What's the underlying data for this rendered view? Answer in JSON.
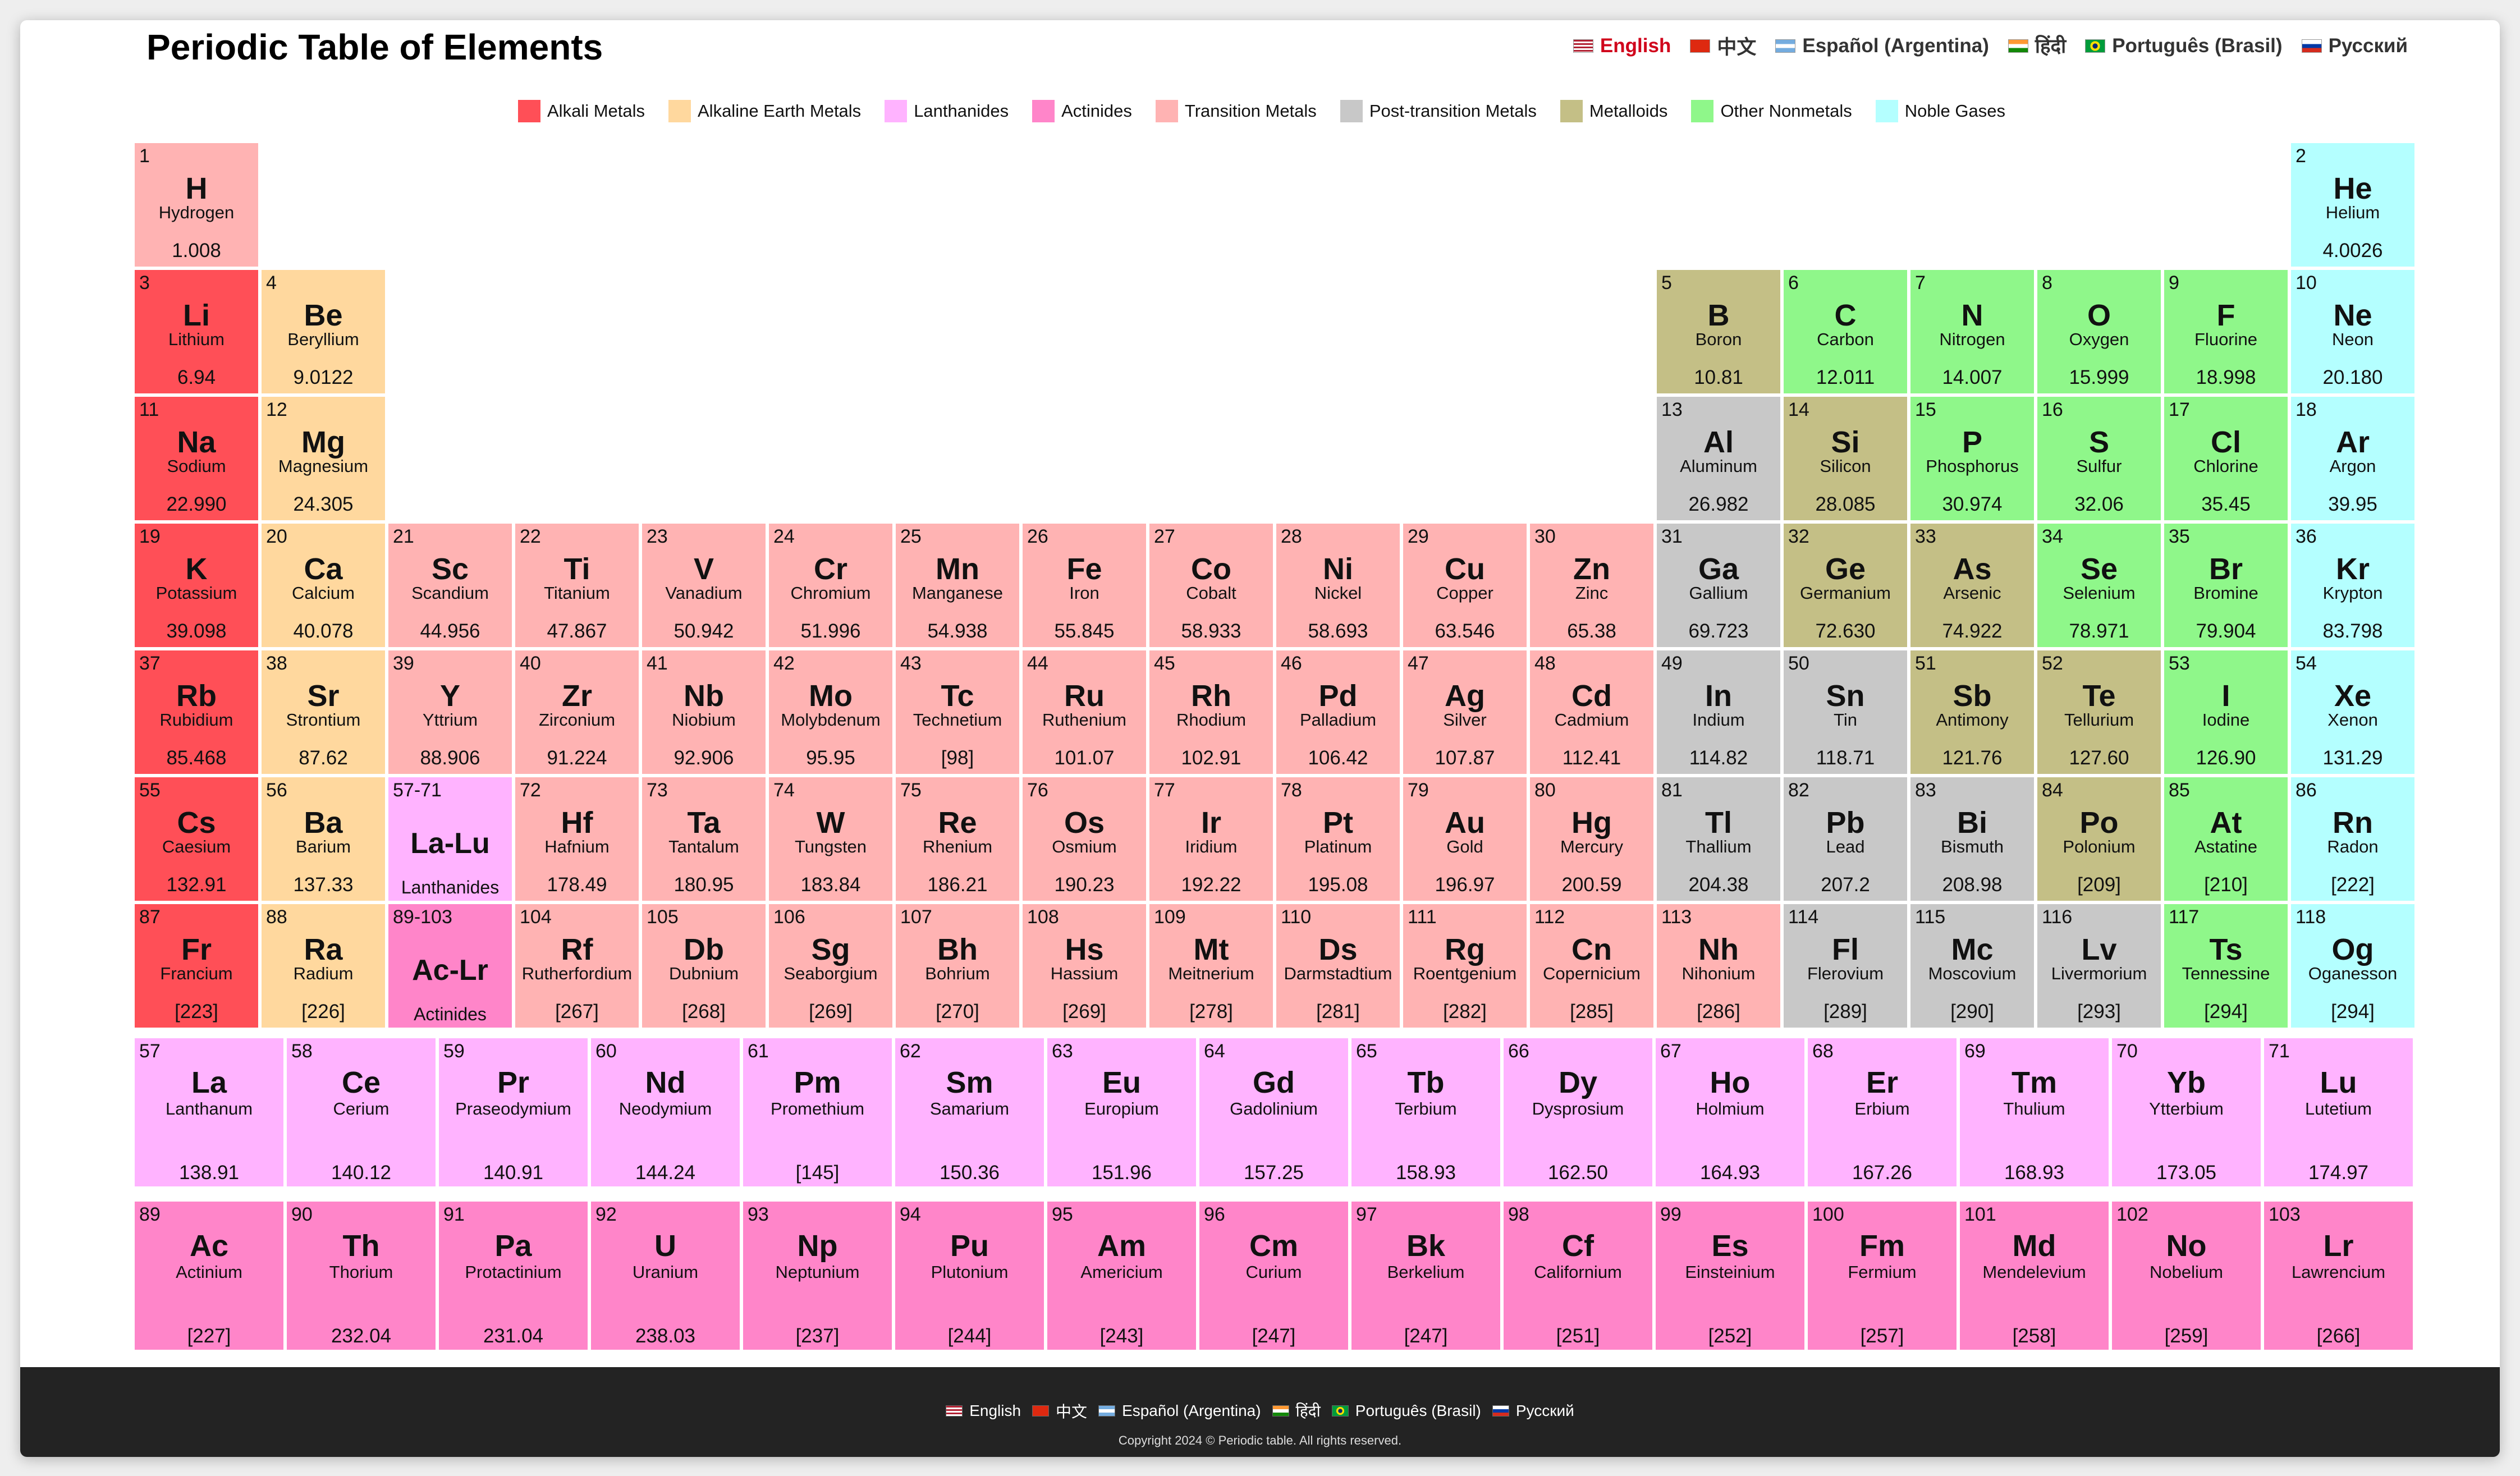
{
  "title": "Periodic Table of Elements",
  "languages": [
    {
      "label": "English",
      "flag": "us",
      "active": true
    },
    {
      "label": "中文",
      "flag": "cn",
      "active": false
    },
    {
      "label": "Español (Argentina)",
      "flag": "ar",
      "active": false
    },
    {
      "label": "हिंदी",
      "flag": "in",
      "active": false
    },
    {
      "label": "Português (Brasil)",
      "flag": "br",
      "active": false
    },
    {
      "label": "Русский",
      "flag": "ru",
      "active": false
    }
  ],
  "legend": [
    {
      "label": "Alkali Metals",
      "color": "#ff4f57"
    },
    {
      "label": "Alkaline Earth Metals",
      "color": "#ffd89e"
    },
    {
      "label": "Lanthanides",
      "color": "#ffb3ff"
    },
    {
      "label": "Actinides",
      "color": "#ff85c9"
    },
    {
      "label": "Transition Metals",
      "color": "#ffb3b3"
    },
    {
      "label": "Post-transition Metals",
      "color": "#c8c8c8"
    },
    {
      "label": "Metalloids",
      "color": "#c4bf86"
    },
    {
      "label": "Other Nonmetals",
      "color": "#8ff78a"
    },
    {
      "label": "Noble Gases",
      "color": "#b4ffff"
    }
  ],
  "category_colors": {
    "am": "#ff4f57",
    "ae": "#ffd89e",
    "ln": "#ffb3ff",
    "ac": "#ff85c9",
    "tm": "#ffb3b3",
    "pt": "#c8c8c8",
    "md": "#c4bf86",
    "nm": "#8ff78a",
    "ng": "#b4ffff"
  },
  "elements": [
    {
      "n": "1",
      "s": "H",
      "name": "Hydrogen",
      "m": "1.008",
      "c": "tm",
      "row": 1,
      "col": 1
    },
    {
      "n": "2",
      "s": "He",
      "name": "Helium",
      "m": "4.0026",
      "c": "ng",
      "row": 1,
      "col": 18
    },
    {
      "n": "3",
      "s": "Li",
      "name": "Lithium",
      "m": "6.94",
      "c": "am",
      "row": 2,
      "col": 1
    },
    {
      "n": "4",
      "s": "Be",
      "name": "Beryllium",
      "m": "9.0122",
      "c": "ae",
      "row": 2,
      "col": 2
    },
    {
      "n": "5",
      "s": "B",
      "name": "Boron",
      "m": "10.81",
      "c": "md",
      "row": 2,
      "col": 13
    },
    {
      "n": "6",
      "s": "C",
      "name": "Carbon",
      "m": "12.011",
      "c": "nm",
      "row": 2,
      "col": 14
    },
    {
      "n": "7",
      "s": "N",
      "name": "Nitrogen",
      "m": "14.007",
      "c": "nm",
      "row": 2,
      "col": 15
    },
    {
      "n": "8",
      "s": "O",
      "name": "Oxygen",
      "m": "15.999",
      "c": "nm",
      "row": 2,
      "col": 16
    },
    {
      "n": "9",
      "s": "F",
      "name": "Fluorine",
      "m": "18.998",
      "c": "nm",
      "row": 2,
      "col": 17
    },
    {
      "n": "10",
      "s": "Ne",
      "name": "Neon",
      "m": "20.180",
      "c": "ng",
      "row": 2,
      "col": 18
    },
    {
      "n": "11",
      "s": "Na",
      "name": "Sodium",
      "m": "22.990",
      "c": "am",
      "row": 3,
      "col": 1
    },
    {
      "n": "12",
      "s": "Mg",
      "name": "Magnesium",
      "m": "24.305",
      "c": "ae",
      "row": 3,
      "col": 2
    },
    {
      "n": "13",
      "s": "Al",
      "name": "Aluminum",
      "m": "26.982",
      "c": "pt",
      "row": 3,
      "col": 13
    },
    {
      "n": "14",
      "s": "Si",
      "name": "Silicon",
      "m": "28.085",
      "c": "md",
      "row": 3,
      "col": 14
    },
    {
      "n": "15",
      "s": "P",
      "name": "Phosphorus",
      "m": "30.974",
      "c": "nm",
      "row": 3,
      "col": 15
    },
    {
      "n": "16",
      "s": "S",
      "name": "Sulfur",
      "m": "32.06",
      "c": "nm",
      "row": 3,
      "col": 16
    },
    {
      "n": "17",
      "s": "Cl",
      "name": "Chlorine",
      "m": "35.45",
      "c": "nm",
      "row": 3,
      "col": 17
    },
    {
      "n": "18",
      "s": "Ar",
      "name": "Argon",
      "m": "39.95",
      "c": "ng",
      "row": 3,
      "col": 18
    },
    {
      "n": "19",
      "s": "K",
      "name": "Potassium",
      "m": "39.098",
      "c": "am",
      "row": 4,
      "col": 1
    },
    {
      "n": "20",
      "s": "Ca",
      "name": "Calcium",
      "m": "40.078",
      "c": "ae",
      "row": 4,
      "col": 2
    },
    {
      "n": "21",
      "s": "Sc",
      "name": "Scandium",
      "m": "44.956",
      "c": "tm",
      "row": 4,
      "col": 3
    },
    {
      "n": "22",
      "s": "Ti",
      "name": "Titanium",
      "m": "47.867",
      "c": "tm",
      "row": 4,
      "col": 4
    },
    {
      "n": "23",
      "s": "V",
      "name": "Vanadium",
      "m": "50.942",
      "c": "tm",
      "row": 4,
      "col": 5
    },
    {
      "n": "24",
      "s": "Cr",
      "name": "Chromium",
      "m": "51.996",
      "c": "tm",
      "row": 4,
      "col": 6
    },
    {
      "n": "25",
      "s": "Mn",
      "name": "Manganese",
      "m": "54.938",
      "c": "tm",
      "row": 4,
      "col": 7
    },
    {
      "n": "26",
      "s": "Fe",
      "name": "Iron",
      "m": "55.845",
      "c": "tm",
      "row": 4,
      "col": 8
    },
    {
      "n": "27",
      "s": "Co",
      "name": "Cobalt",
      "m": "58.933",
      "c": "tm",
      "row": 4,
      "col": 9
    },
    {
      "n": "28",
      "s": "Ni",
      "name": "Nickel",
      "m": "58.693",
      "c": "tm",
      "row": 4,
      "col": 10
    },
    {
      "n": "29",
      "s": "Cu",
      "name": "Copper",
      "m": "63.546",
      "c": "tm",
      "row": 4,
      "col": 11
    },
    {
      "n": "30",
      "s": "Zn",
      "name": "Zinc",
      "m": "65.38",
      "c": "tm",
      "row": 4,
      "col": 12
    },
    {
      "n": "31",
      "s": "Ga",
      "name": "Gallium",
      "m": "69.723",
      "c": "pt",
      "row": 4,
      "col": 13
    },
    {
      "n": "32",
      "s": "Ge",
      "name": "Germanium",
      "m": "72.630",
      "c": "md",
      "row": 4,
      "col": 14
    },
    {
      "n": "33",
      "s": "As",
      "name": "Arsenic",
      "m": "74.922",
      "c": "md",
      "row": 4,
      "col": 15
    },
    {
      "n": "34",
      "s": "Se",
      "name": "Selenium",
      "m": "78.971",
      "c": "nm",
      "row": 4,
      "col": 16
    },
    {
      "n": "35",
      "s": "Br",
      "name": "Bromine",
      "m": "79.904",
      "c": "nm",
      "row": 4,
      "col": 17
    },
    {
      "n": "36",
      "s": "Kr",
      "name": "Krypton",
      "m": "83.798",
      "c": "ng",
      "row": 4,
      "col": 18
    },
    {
      "n": "37",
      "s": "Rb",
      "name": "Rubidium",
      "m": "85.468",
      "c": "am",
      "row": 5,
      "col": 1
    },
    {
      "n": "38",
      "s": "Sr",
      "name": "Strontium",
      "m": "87.62",
      "c": "ae",
      "row": 5,
      "col": 2
    },
    {
      "n": "39",
      "s": "Y",
      "name": "Yttrium",
      "m": "88.906",
      "c": "tm",
      "row": 5,
      "col": 3
    },
    {
      "n": "40",
      "s": "Zr",
      "name": "Zirconium",
      "m": "91.224",
      "c": "tm",
      "row": 5,
      "col": 4
    },
    {
      "n": "41",
      "s": "Nb",
      "name": "Niobium",
      "m": "92.906",
      "c": "tm",
      "row": 5,
      "col": 5
    },
    {
      "n": "42",
      "s": "Mo",
      "name": "Molybdenum",
      "m": "95.95",
      "c": "tm",
      "row": 5,
      "col": 6
    },
    {
      "n": "43",
      "s": "Tc",
      "name": "Technetium",
      "m": "[98]",
      "c": "tm",
      "row": 5,
      "col": 7
    },
    {
      "n": "44",
      "s": "Ru",
      "name": "Ruthenium",
      "m": "101.07",
      "c": "tm",
      "row": 5,
      "col": 8
    },
    {
      "n": "45",
      "s": "Rh",
      "name": "Rhodium",
      "m": "102.91",
      "c": "tm",
      "row": 5,
      "col": 9
    },
    {
      "n": "46",
      "s": "Pd",
      "name": "Palladium",
      "m": "106.42",
      "c": "tm",
      "row": 5,
      "col": 10
    },
    {
      "n": "47",
      "s": "Ag",
      "name": "Silver",
      "m": "107.87",
      "c": "tm",
      "row": 5,
      "col": 11
    },
    {
      "n": "48",
      "s": "Cd",
      "name": "Cadmium",
      "m": "112.41",
      "c": "tm",
      "row": 5,
      "col": 12
    },
    {
      "n": "49",
      "s": "In",
      "name": "Indium",
      "m": "114.82",
      "c": "pt",
      "row": 5,
      "col": 13
    },
    {
      "n": "50",
      "s": "Sn",
      "name": "Tin",
      "m": "118.71",
      "c": "pt",
      "row": 5,
      "col": 14
    },
    {
      "n": "51",
      "s": "Sb",
      "name": "Antimony",
      "m": "121.76",
      "c": "md",
      "row": 5,
      "col": 15
    },
    {
      "n": "52",
      "s": "Te",
      "name": "Tellurium",
      "m": "127.60",
      "c": "md",
      "row": 5,
      "col": 16
    },
    {
      "n": "53",
      "s": "I",
      "name": "Iodine",
      "m": "126.90",
      "c": "nm",
      "row": 5,
      "col": 17
    },
    {
      "n": "54",
      "s": "Xe",
      "name": "Xenon",
      "m": "131.29",
      "c": "ng",
      "row": 5,
      "col": 18
    },
    {
      "n": "55",
      "s": "Cs",
      "name": "Caesium",
      "m": "132.91",
      "c": "am",
      "row": 6,
      "col": 1
    },
    {
      "n": "56",
      "s": "Ba",
      "name": "Barium",
      "m": "137.33",
      "c": "ae",
      "row": 6,
      "col": 2
    },
    {
      "n": "57-71",
      "s": "La-Lu",
      "name": "Lanthanides",
      "m": "",
      "c": "ln",
      "row": 6,
      "col": 3,
      "range": true
    },
    {
      "n": "72",
      "s": "Hf",
      "name": "Hafnium",
      "m": "178.49",
      "c": "tm",
      "row": 6,
      "col": 4
    },
    {
      "n": "73",
      "s": "Ta",
      "name": "Tantalum",
      "m": "180.95",
      "c": "tm",
      "row": 6,
      "col": 5
    },
    {
      "n": "74",
      "s": "W",
      "name": "Tungsten",
      "m": "183.84",
      "c": "tm",
      "row": 6,
      "col": 6
    },
    {
      "n": "75",
      "s": "Re",
      "name": "Rhenium",
      "m": "186.21",
      "c": "tm",
      "row": 6,
      "col": 7
    },
    {
      "n": "76",
      "s": "Os",
      "name": "Osmium",
      "m": "190.23",
      "c": "tm",
      "row": 6,
      "col": 8
    },
    {
      "n": "77",
      "s": "Ir",
      "name": "Iridium",
      "m": "192.22",
      "c": "tm",
      "row": 6,
      "col": 9
    },
    {
      "n": "78",
      "s": "Pt",
      "name": "Platinum",
      "m": "195.08",
      "c": "tm",
      "row": 6,
      "col": 10
    },
    {
      "n": "79",
      "s": "Au",
      "name": "Gold",
      "m": "196.97",
      "c": "tm",
      "row": 6,
      "col": 11
    },
    {
      "n": "80",
      "s": "Hg",
      "name": "Mercury",
      "m": "200.59",
      "c": "tm",
      "row": 6,
      "col": 12
    },
    {
      "n": "81",
      "s": "Tl",
      "name": "Thallium",
      "m": "204.38",
      "c": "pt",
      "row": 6,
      "col": 13
    },
    {
      "n": "82",
      "s": "Pb",
      "name": "Lead",
      "m": "207.2",
      "c": "pt",
      "row": 6,
      "col": 14
    },
    {
      "n": "83",
      "s": "Bi",
      "name": "Bismuth",
      "m": "208.98",
      "c": "pt",
      "row": 6,
      "col": 15
    },
    {
      "n": "84",
      "s": "Po",
      "name": "Polonium",
      "m": "[209]",
      "c": "md",
      "row": 6,
      "col": 16
    },
    {
      "n": "85",
      "s": "At",
      "name": "Astatine",
      "m": "[210]",
      "c": "nm",
      "row": 6,
      "col": 17
    },
    {
      "n": "86",
      "s": "Rn",
      "name": "Radon",
      "m": "[222]",
      "c": "ng",
      "row": 6,
      "col": 18
    },
    {
      "n": "87",
      "s": "Fr",
      "name": "Francium",
      "m": "[223]",
      "c": "am",
      "row": 7,
      "col": 1
    },
    {
      "n": "88",
      "s": "Ra",
      "name": "Radium",
      "m": "[226]",
      "c": "ae",
      "row": 7,
      "col": 2
    },
    {
      "n": "89-103",
      "s": "Ac-Lr",
      "name": "Actinides",
      "m": "",
      "c": "ac",
      "row": 7,
      "col": 3,
      "range": true
    },
    {
      "n": "104",
      "s": "Rf",
      "name": "Rutherfordium",
      "m": "[267]",
      "c": "tm",
      "row": 7,
      "col": 4
    },
    {
      "n": "105",
      "s": "Db",
      "name": "Dubnium",
      "m": "[268]",
      "c": "tm",
      "row": 7,
      "col": 5
    },
    {
      "n": "106",
      "s": "Sg",
      "name": "Seaborgium",
      "m": "[269]",
      "c": "tm",
      "row": 7,
      "col": 6
    },
    {
      "n": "107",
      "s": "Bh",
      "name": "Bohrium",
      "m": "[270]",
      "c": "tm",
      "row": 7,
      "col": 7
    },
    {
      "n": "108",
      "s": "Hs",
      "name": "Hassium",
      "m": "[269]",
      "c": "tm",
      "row": 7,
      "col": 8
    },
    {
      "n": "109",
      "s": "Mt",
      "name": "Meitnerium",
      "m": "[278]",
      "c": "tm",
      "row": 7,
      "col": 9
    },
    {
      "n": "110",
      "s": "Ds",
      "name": "Darmstadtium",
      "m": "[281]",
      "c": "tm",
      "row": 7,
      "col": 10
    },
    {
      "n": "111",
      "s": "Rg",
      "name": "Roentgenium",
      "m": "[282]",
      "c": "tm",
      "row": 7,
      "col": 11
    },
    {
      "n": "112",
      "s": "Cn",
      "name": "Copernicium",
      "m": "[285]",
      "c": "tm",
      "row": 7,
      "col": 12
    },
    {
      "n": "113",
      "s": "Nh",
      "name": "Nihonium",
      "m": "[286]",
      "c": "tm",
      "row": 7,
      "col": 13
    },
    {
      "n": "114",
      "s": "Fl",
      "name": "Flerovium",
      "m": "[289]",
      "c": "pt",
      "row": 7,
      "col": 14
    },
    {
      "n": "115",
      "s": "Mc",
      "name": "Moscovium",
      "m": "[290]",
      "c": "pt",
      "row": 7,
      "col": 15
    },
    {
      "n": "116",
      "s": "Lv",
      "name": "Livermorium",
      "m": "[293]",
      "c": "pt",
      "row": 7,
      "col": 16
    },
    {
      "n": "117",
      "s": "Ts",
      "name": "Tennessine",
      "m": "[294]",
      "c": "nm",
      "row": 7,
      "col": 17
    },
    {
      "n": "118",
      "s": "Og",
      "name": "Oganesson",
      "m": "[294]",
      "c": "ng",
      "row": 7,
      "col": 18
    }
  ],
  "lanthanides": [
    {
      "n": "57",
      "s": "La",
      "name": "Lanthanum",
      "m": "138.91"
    },
    {
      "n": "58",
      "s": "Ce",
      "name": "Cerium",
      "m": "140.12"
    },
    {
      "n": "59",
      "s": "Pr",
      "name": "Praseodymium",
      "m": "140.91"
    },
    {
      "n": "60",
      "s": "Nd",
      "name": "Neodymium",
      "m": "144.24"
    },
    {
      "n": "61",
      "s": "Pm",
      "name": "Promethium",
      "m": "[145]"
    },
    {
      "n": "62",
      "s": "Sm",
      "name": "Samarium",
      "m": "150.36"
    },
    {
      "n": "63",
      "s": "Eu",
      "name": "Europium",
      "m": "151.96"
    },
    {
      "n": "64",
      "s": "Gd",
      "name": "Gadolinium",
      "m": "157.25"
    },
    {
      "n": "65",
      "s": "Tb",
      "name": "Terbium",
      "m": "158.93"
    },
    {
      "n": "66",
      "s": "Dy",
      "name": "Dysprosium",
      "m": "162.50"
    },
    {
      "n": "67",
      "s": "Ho",
      "name": "Holmium",
      "m": "164.93"
    },
    {
      "n": "68",
      "s": "Er",
      "name": "Erbium",
      "m": "167.26"
    },
    {
      "n": "69",
      "s": "Tm",
      "name": "Thulium",
      "m": "168.93"
    },
    {
      "n": "70",
      "s": "Yb",
      "name": "Ytterbium",
      "m": "173.05"
    },
    {
      "n": "71",
      "s": "Lu",
      "name": "Lutetium",
      "m": "174.97"
    }
  ],
  "actinides": [
    {
      "n": "89",
      "s": "Ac",
      "name": "Actinium",
      "m": "[227]"
    },
    {
      "n": "90",
      "s": "Th",
      "name": "Thorium",
      "m": "232.04"
    },
    {
      "n": "91",
      "s": "Pa",
      "name": "Protactinium",
      "m": "231.04"
    },
    {
      "n": "92",
      "s": "U",
      "name": "Uranium",
      "m": "238.03"
    },
    {
      "n": "93",
      "s": "Np",
      "name": "Neptunium",
      "m": "[237]"
    },
    {
      "n": "94",
      "s": "Pu",
      "name": "Plutonium",
      "m": "[244]"
    },
    {
      "n": "95",
      "s": "Am",
      "name": "Americium",
      "m": "[243]"
    },
    {
      "n": "96",
      "s": "Cm",
      "name": "Curium",
      "m": "[247]"
    },
    {
      "n": "97",
      "s": "Bk",
      "name": "Berkelium",
      "m": "[247]"
    },
    {
      "n": "98",
      "s": "Cf",
      "name": "Californium",
      "m": "[251]"
    },
    {
      "n": "99",
      "s": "Es",
      "name": "Einsteinium",
      "m": "[252]"
    },
    {
      "n": "100",
      "s": "Fm",
      "name": "Fermium",
      "m": "[257]"
    },
    {
      "n": "101",
      "s": "Md",
      "name": "Mendelevium",
      "m": "[258]"
    },
    {
      "n": "102",
      "s": "No",
      "name": "Nobelium",
      "m": "[259]"
    },
    {
      "n": "103",
      "s": "Lr",
      "name": "Lawrencium",
      "m": "[266]"
    }
  ],
  "footer": {
    "copyright": "Copyright 2024 © Periodic table. All rights reserved."
  }
}
